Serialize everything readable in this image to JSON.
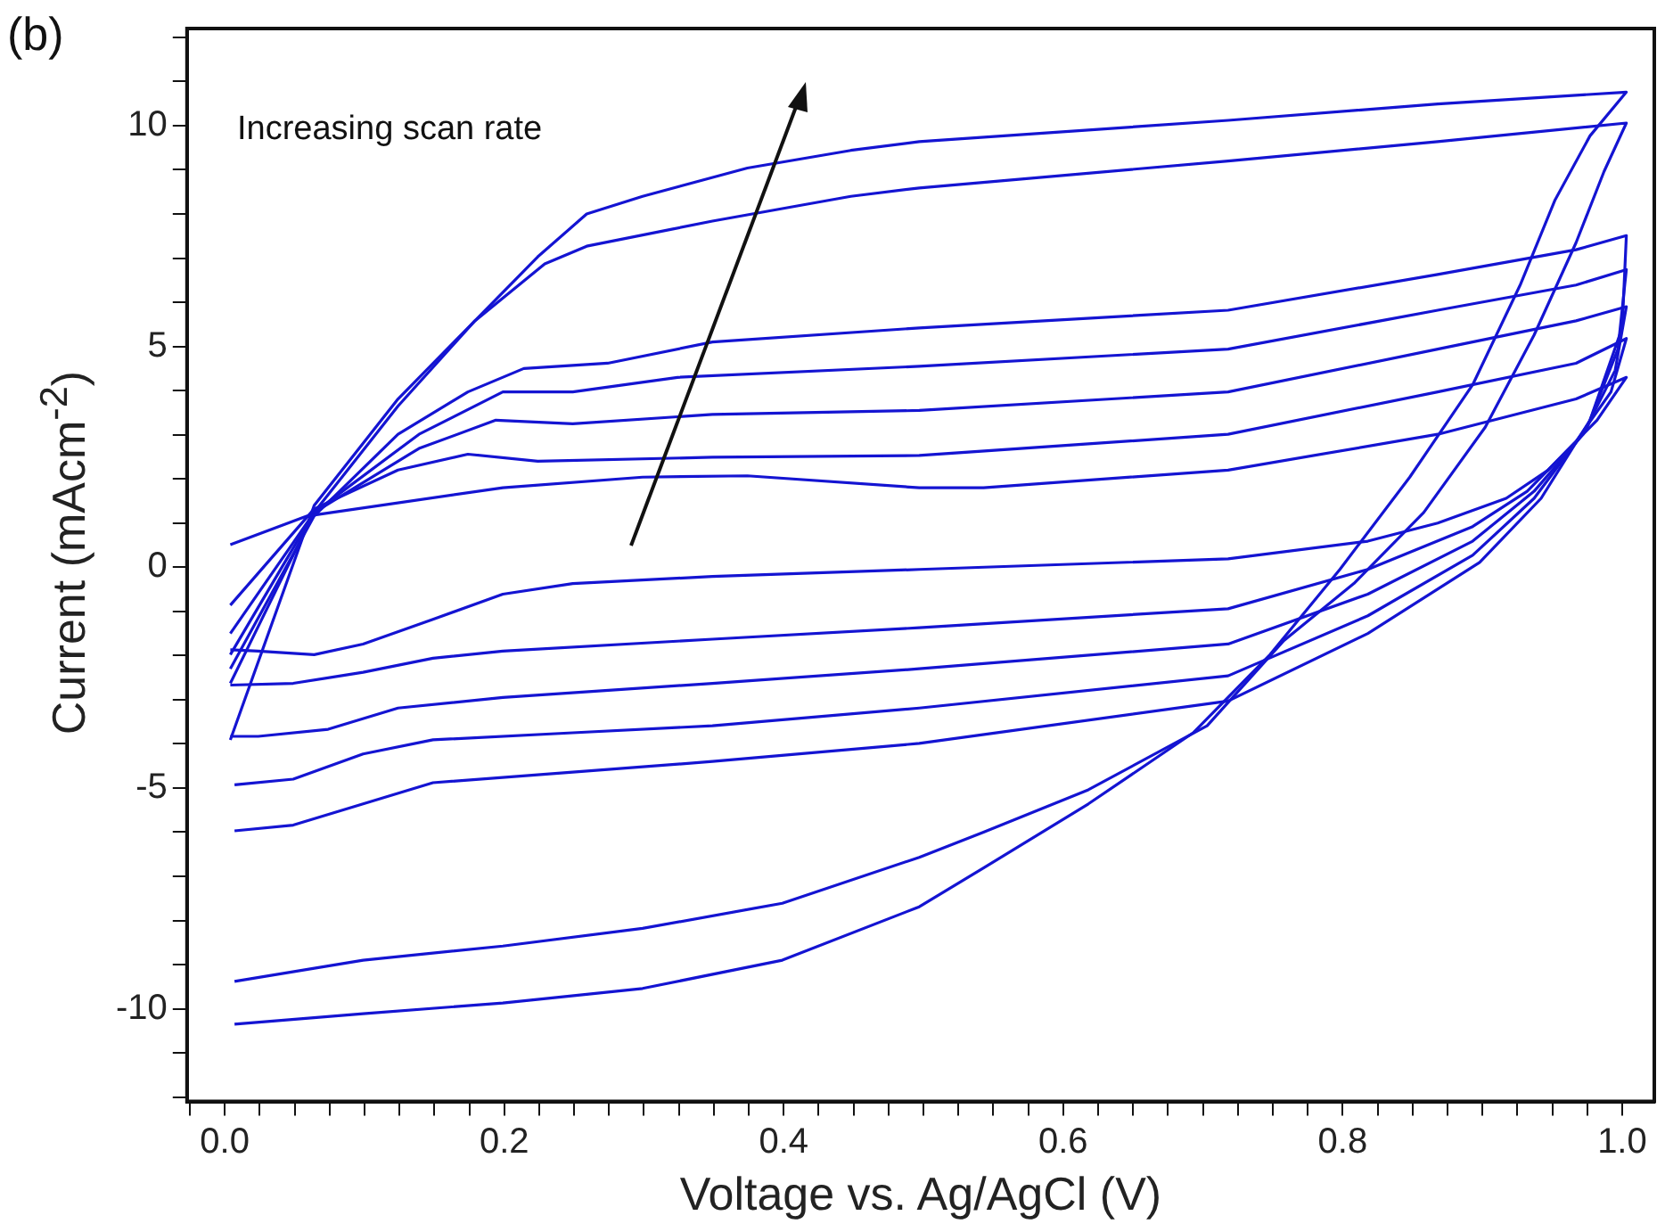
{
  "chart_data": {
    "type": "line",
    "xlabel": "Voltage vs. Ag/AgCl (V)",
    "ylabel": "Current (mAcm$^{-2}$)",
    "annotations": [
      "(b)",
      "Increasing scan rate"
    ],
    "xlim": [
      -0.027,
      1.023
    ],
    "ylim": [
      -12.1,
      12.2
    ],
    "xticks": [
      {
        "value": -0.025,
        "label": null
      },
      {
        "value": 0,
        "label": "0.0"
      },
      {
        "value": 0.025,
        "label": null
      },
      {
        "value": 0.05,
        "label": null
      },
      {
        "value": 0.075,
        "label": null
      },
      {
        "value": 0.1,
        "label": null
      },
      {
        "value": 0.125,
        "label": null
      },
      {
        "value": 0.15,
        "label": null
      },
      {
        "value": 0.175,
        "label": null
      },
      {
        "value": 0.2,
        "label": "0.2"
      },
      {
        "value": 0.225,
        "label": null
      },
      {
        "value": 0.25,
        "label": null
      },
      {
        "value": 0.275,
        "label": null
      },
      {
        "value": 0.3,
        "label": null
      },
      {
        "value": 0.325,
        "label": null
      },
      {
        "value": 0.35,
        "label": null
      },
      {
        "value": 0.375,
        "label": null
      },
      {
        "value": 0.4,
        "label": "0.4"
      },
      {
        "value": 0.425,
        "label": null
      },
      {
        "value": 0.45,
        "label": null
      },
      {
        "value": 0.475,
        "label": null
      },
      {
        "value": 0.5,
        "label": null
      },
      {
        "value": 0.525,
        "label": null
      },
      {
        "value": 0.55,
        "label": null
      },
      {
        "value": 0.575,
        "label": null
      },
      {
        "value": 0.6,
        "label": "0.6"
      },
      {
        "value": 0.625,
        "label": null
      },
      {
        "value": 0.65,
        "label": null
      },
      {
        "value": 0.675,
        "label": null
      },
      {
        "value": 0.7,
        "label": null
      },
      {
        "value": 0.725,
        "label": null
      },
      {
        "value": 0.75,
        "label": null
      },
      {
        "value": 0.775,
        "label": null
      },
      {
        "value": 0.8,
        "label": "0.8"
      },
      {
        "value": 0.825,
        "label": null
      },
      {
        "value": 0.85,
        "label": null
      },
      {
        "value": 0.875,
        "label": null
      },
      {
        "value": 0.9,
        "label": null
      },
      {
        "value": 0.925,
        "label": null
      },
      {
        "value": 0.95,
        "label": null
      },
      {
        "value": 0.975,
        "label": null
      },
      {
        "value": 1,
        "label": "1.0"
      }
    ],
    "yticks": [
      {
        "value": -12,
        "label": null
      },
      {
        "value": -11,
        "label": null
      },
      -10,
      {
        "value": -9,
        "label": null
      },
      {
        "value": -8,
        "label": null
      },
      {
        "value": -7,
        "label": null
      },
      {
        "value": -6,
        "label": null
      },
      -5,
      {
        "value": -4,
        "label": null
      },
      {
        "value": -3,
        "label": null
      },
      {
        "value": -2,
        "label": null
      },
      {
        "value": -1,
        "label": null
      },
      0,
      {
        "value": 1,
        "label": null
      },
      {
        "value": 2,
        "label": null
      },
      {
        "value": 3,
        "label": null
      },
      {
        "value": 4,
        "label": null
      },
      5,
      {
        "value": 6,
        "label": null
      },
      {
        "value": 7,
        "label": null
      },
      {
        "value": 8,
        "label": null
      },
      {
        "value": 9,
        "label": null
      },
      10,
      {
        "value": 11,
        "label": null
      },
      {
        "value": 12,
        "label": null
      }
    ],
    "grid": false,
    "legend": false,
    "marker": "none",
    "line_style": "solid",
    "series": [
      {
        "color": "#1414d2",
        "x": [
          0.004,
          0.059,
          0.199,
          0.299,
          0.374,
          0.497,
          0.543,
          0.718,
          0.868,
          0.967,
          1.003,
          0.982,
          0.947,
          0.917,
          0.868,
          0.818,
          0.718,
          0.497,
          0.349,
          0.249,
          0.199,
          0.149,
          0.099,
          0.064,
          0.024,
          0.004
        ],
        "values": [
          0.51,
          1.16,
          1.8,
          2.04,
          2.07,
          1.8,
          1.8,
          2.2,
          3.01,
          3.81,
          4.3,
          3.33,
          2.2,
          1.56,
          1.0,
          0.59,
          0.19,
          -0.05,
          -0.21,
          -0.37,
          -0.61,
          -1.18,
          -1.74,
          -1.98,
          -1.9,
          -1.87
        ]
      },
      {
        "color": "#1414d2",
        "x": [
          0.004,
          0.064,
          0.124,
          0.174,
          0.224,
          0.349,
          0.497,
          0.718,
          0.868,
          0.967,
          1.003,
          0.992,
          0.967,
          0.932,
          0.893,
          0.818,
          0.718,
          0.497,
          0.349,
          0.199,
          0.149,
          0.099,
          0.049,
          0.004
        ],
        "values": [
          -0.86,
          1.32,
          2.2,
          2.56,
          2.4,
          2.49,
          2.53,
          3.01,
          3.97,
          4.62,
          5.18,
          3.97,
          2.85,
          1.72,
          0.92,
          -0.05,
          -0.94,
          -1.37,
          -1.63,
          -1.9,
          -2.06,
          -2.38,
          -2.63,
          -2.67
        ]
      },
      {
        "color": "#1414d2",
        "x": [
          0.004,
          0.064,
          0.139,
          0.194,
          0.249,
          0.349,
          0.497,
          0.718,
          0.868,
          0.967,
          1.003,
          0.995,
          0.972,
          0.937,
          0.893,
          0.818,
          0.718,
          0.497,
          0.349,
          0.199,
          0.124,
          0.074,
          0.024,
          0.004
        ],
        "values": [
          -1.5,
          1.24,
          2.69,
          3.33,
          3.25,
          3.46,
          3.55,
          3.97,
          4.94,
          5.58,
          5.9,
          4.46,
          3.01,
          1.72,
          0.59,
          -0.61,
          -1.74,
          -2.3,
          -2.63,
          -2.95,
          -3.19,
          -3.67,
          -3.83,
          -3.83
        ]
      },
      {
        "color": "#1414d2",
        "x": [
          0.004,
          0.064,
          0.139,
          0.199,
          0.249,
          0.324,
          0.497,
          0.718,
          0.868,
          0.967,
          1.003,
          0.997,
          0.975,
          0.937,
          0.893,
          0.818,
          0.718,
          0.497,
          0.349,
          0.249,
          0.149,
          0.099,
          0.049,
          0.007
        ],
        "values": [
          -1.98,
          1.24,
          3.01,
          3.97,
          3.97,
          4.3,
          4.55,
          4.94,
          5.82,
          6.39,
          6.74,
          4.94,
          3.17,
          1.56,
          0.27,
          -1.1,
          -2.46,
          -3.19,
          -3.59,
          -3.75,
          -3.91,
          -4.23,
          -4.8,
          -4.93
        ]
      },
      {
        "color": "#1414d2",
        "x": [
          0.004,
          0.064,
          0.124,
          0.174,
          0.214,
          0.274,
          0.349,
          0.497,
          0.718,
          0.868,
          0.967,
          1.003,
          1.0,
          0.977,
          0.942,
          0.898,
          0.818,
          0.718,
          0.497,
          0.349,
          0.249,
          0.149,
          0.099,
          0.049,
          0.007
        ],
        "values": [
          -2.3,
          1.16,
          3.01,
          3.97,
          4.5,
          4.62,
          5.1,
          5.42,
          5.82,
          6.63,
          7.19,
          7.51,
          5.42,
          3.33,
          1.56,
          0.11,
          -1.5,
          -3.03,
          -3.99,
          -4.4,
          -4.64,
          -4.88,
          -5.36,
          -5.84,
          -5.97
        ]
      },
      {
        "color": "#1414d2",
        "x": [
          0.004,
          0.064,
          0.124,
          0.179,
          0.229,
          0.259,
          0.349,
          0.448,
          0.497,
          0.718,
          0.868,
          1.003,
          0.987,
          0.967,
          0.937,
          0.902,
          0.858,
          0.808,
          0.758,
          0.703,
          0.618,
          0.543,
          0.497,
          0.399,
          0.299,
          0.199,
          0.099,
          0.007
        ],
        "values": [
          -2.63,
          1.24,
          3.65,
          5.58,
          6.87,
          7.27,
          7.84,
          8.4,
          8.59,
          9.2,
          9.64,
          10.06,
          8.96,
          7.35,
          5.26,
          3.17,
          1.24,
          -0.37,
          -1.66,
          -3.59,
          -5.04,
          -6.0,
          -6.57,
          -7.61,
          -8.18,
          -8.58,
          -8.9,
          -9.38
        ]
      },
      {
        "color": "#1414d2",
        "x": [
          0.004,
          0.064,
          0.124,
          0.174,
          0.224,
          0.259,
          0.299,
          0.374,
          0.448,
          0.497,
          0.718,
          0.868,
          1.003,
          0.977,
          0.952,
          0.927,
          0.893,
          0.848,
          0.798,
          0.748,
          0.693,
          0.618,
          0.543,
          0.497,
          0.399,
          0.299,
          0.199,
          0.099,
          0.007
        ],
        "values": [
          -3.91,
          1.4,
          3.81,
          5.42,
          7.03,
          8.0,
          8.4,
          9.04,
          9.44,
          9.64,
          10.12,
          10.49,
          10.76,
          9.77,
          8.32,
          6.39,
          4.13,
          2.04,
          -0.05,
          -1.98,
          -3.75,
          -5.36,
          -6.81,
          -7.69,
          -8.9,
          -9.54,
          -9.87,
          -10.11,
          -10.35
        ]
      }
    ]
  }
}
